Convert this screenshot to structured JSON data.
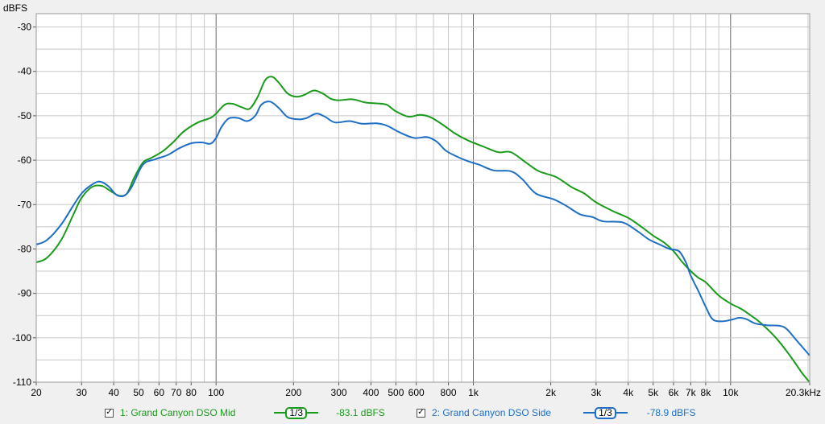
{
  "colors": {
    "series1": "#1a9a1a",
    "series2": "#1e6fc4",
    "plot_bg": "#ffffff",
    "grid_minor": "#c8c8c8",
    "grid_major": "#646464"
  },
  "chart_data": {
    "type": "line",
    "ylabel": "dBFS",
    "xscale": "log",
    "xlim": [
      20,
      20300
    ],
    "ylim": [
      -110,
      -27
    ],
    "grid": true,
    "x_ticks": [
      {
        "v": 20,
        "label": "20"
      },
      {
        "v": 30,
        "label": "30"
      },
      {
        "v": 40,
        "label": "40"
      },
      {
        "v": 50,
        "label": "50"
      },
      {
        "v": 60,
        "label": "60"
      },
      {
        "v": 70,
        "label": "70"
      },
      {
        "v": 80,
        "label": "80"
      },
      {
        "v": 100,
        "label": "100"
      },
      {
        "v": 200,
        "label": "200"
      },
      {
        "v": 300,
        "label": "300"
      },
      {
        "v": 400,
        "label": "400"
      },
      {
        "v": 500,
        "label": "500"
      },
      {
        "v": 600,
        "label": "600"
      },
      {
        "v": 800,
        "label": "800"
      },
      {
        "v": 1000,
        "label": "1k"
      },
      {
        "v": 2000,
        "label": "2k"
      },
      {
        "v": 3000,
        "label": "3k"
      },
      {
        "v": 4000,
        "label": "4k"
      },
      {
        "v": 5000,
        "label": "5k"
      },
      {
        "v": 6000,
        "label": "6k"
      },
      {
        "v": 7000,
        "label": "7k"
      },
      {
        "v": 8000,
        "label": "8k"
      },
      {
        "v": 10000,
        "label": "10k"
      },
      {
        "v": 20300,
        "label": "20.3kHz"
      }
    ],
    "y_ticks": [
      -30,
      -40,
      -50,
      -60,
      -70,
      -80,
      -90,
      -100,
      -110
    ],
    "series": [
      {
        "name": "1: Grand Canyon DSO Mid",
        "points": [
          [
            20,
            -83
          ],
          [
            22,
            -82
          ],
          [
            25,
            -78
          ],
          [
            28,
            -72
          ],
          [
            30,
            -68.5
          ],
          [
            33,
            -66
          ],
          [
            36,
            -65.8
          ],
          [
            39,
            -67
          ],
          [
            42,
            -68
          ],
          [
            45,
            -67.5
          ],
          [
            48,
            -64
          ],
          [
            52,
            -60.5
          ],
          [
            56,
            -59.5
          ],
          [
            62,
            -58
          ],
          [
            68,
            -56
          ],
          [
            75,
            -53.5
          ],
          [
            85,
            -51.5
          ],
          [
            95,
            -50.5
          ],
          [
            100,
            -49.5
          ],
          [
            108,
            -47.5
          ],
          [
            116,
            -47.3
          ],
          [
            125,
            -48
          ],
          [
            135,
            -48.4
          ],
          [
            145,
            -45.8
          ],
          [
            155,
            -42
          ],
          [
            165,
            -41.2
          ],
          [
            175,
            -42.5
          ],
          [
            190,
            -45
          ],
          [
            205,
            -45.7
          ],
          [
            220,
            -45.3
          ],
          [
            240,
            -44.3
          ],
          [
            260,
            -45
          ],
          [
            280,
            -46.2
          ],
          [
            300,
            -46.5
          ],
          [
            340,
            -46.3
          ],
          [
            380,
            -47
          ],
          [
            420,
            -47.2
          ],
          [
            460,
            -47.5
          ],
          [
            500,
            -49
          ],
          [
            560,
            -50.2
          ],
          [
            620,
            -49.8
          ],
          [
            680,
            -50.3
          ],
          [
            760,
            -52
          ],
          [
            850,
            -54
          ],
          [
            950,
            -55.5
          ],
          [
            1100,
            -57
          ],
          [
            1250,
            -58.2
          ],
          [
            1400,
            -58.2
          ],
          [
            1600,
            -60.5
          ],
          [
            1800,
            -62.5
          ],
          [
            2100,
            -63.8
          ],
          [
            2400,
            -66
          ],
          [
            2700,
            -67.5
          ],
          [
            3000,
            -69.5
          ],
          [
            3500,
            -71.5
          ],
          [
            4000,
            -73
          ],
          [
            4500,
            -75
          ],
          [
            5000,
            -77
          ],
          [
            5500,
            -78.5
          ],
          [
            6000,
            -80.5
          ],
          [
            6500,
            -83
          ],
          [
            7000,
            -85
          ],
          [
            7500,
            -86.5
          ],
          [
            8000,
            -87.5
          ],
          [
            9000,
            -90.5
          ],
          [
            10000,
            -92.3
          ],
          [
            11000,
            -93.5
          ],
          [
            12000,
            -95
          ],
          [
            13000,
            -96.5
          ],
          [
            15000,
            -100
          ],
          [
            17000,
            -104
          ],
          [
            19000,
            -108
          ],
          [
            20300,
            -110
          ]
        ]
      },
      {
        "name": "2: Grand Canyon DSO Side",
        "points": [
          [
            20,
            -79
          ],
          [
            22,
            -78
          ],
          [
            25,
            -74.5
          ],
          [
            28,
            -70
          ],
          [
            30,
            -67.5
          ],
          [
            32,
            -66
          ],
          [
            35,
            -64.8
          ],
          [
            38,
            -65.8
          ],
          [
            41,
            -67.8
          ],
          [
            44,
            -68
          ],
          [
            47,
            -66
          ],
          [
            52,
            -61
          ],
          [
            58,
            -59.8
          ],
          [
            65,
            -58.8
          ],
          [
            72,
            -57.3
          ],
          [
            80,
            -56.2
          ],
          [
            88,
            -56
          ],
          [
            95,
            -56.3
          ],
          [
            100,
            -55
          ],
          [
            105,
            -52.5
          ],
          [
            112,
            -50.6
          ],
          [
            122,
            -50.5
          ],
          [
            132,
            -51.2
          ],
          [
            142,
            -50
          ],
          [
            150,
            -47.5
          ],
          [
            162,
            -46.8
          ],
          [
            175,
            -48.2
          ],
          [
            190,
            -50.3
          ],
          [
            210,
            -50.8
          ],
          [
            225,
            -50.5
          ],
          [
            245,
            -49.5
          ],
          [
            265,
            -50.2
          ],
          [
            290,
            -51.5
          ],
          [
            330,
            -51.2
          ],
          [
            370,
            -51.8
          ],
          [
            420,
            -51.7
          ],
          [
            460,
            -52.2
          ],
          [
            520,
            -53.8
          ],
          [
            590,
            -55
          ],
          [
            660,
            -54.8
          ],
          [
            720,
            -55.8
          ],
          [
            780,
            -57.8
          ],
          [
            850,
            -59
          ],
          [
            950,
            -60.2
          ],
          [
            1050,
            -61
          ],
          [
            1200,
            -62.3
          ],
          [
            1400,
            -62.5
          ],
          [
            1550,
            -64.3
          ],
          [
            1750,
            -67.5
          ],
          [
            2050,
            -68.8
          ],
          [
            2300,
            -70.3
          ],
          [
            2600,
            -72.2
          ],
          [
            2900,
            -72.8
          ],
          [
            3200,
            -73.8
          ],
          [
            3800,
            -74
          ],
          [
            4300,
            -75.8
          ],
          [
            4800,
            -77.8
          ],
          [
            5300,
            -79
          ],
          [
            5800,
            -80
          ],
          [
            6300,
            -80.5
          ],
          [
            6700,
            -83
          ],
          [
            7000,
            -86
          ],
          [
            7500,
            -89.5
          ],
          [
            8000,
            -93
          ],
          [
            8500,
            -95.8
          ],
          [
            9200,
            -96.3
          ],
          [
            10000,
            -96
          ],
          [
            10800,
            -95.5
          ],
          [
            11500,
            -95.8
          ],
          [
            12500,
            -96.8
          ],
          [
            14000,
            -97.2
          ],
          [
            15500,
            -97.3
          ],
          [
            16500,
            -98
          ],
          [
            18000,
            -100.5
          ],
          [
            20300,
            -104
          ]
        ]
      }
    ]
  },
  "legend": [
    {
      "checkbox": "✓",
      "label": "1: Grand Canyon DSO Mid",
      "smoothing": "1/3",
      "reading": "-83.1 dBFS",
      "color": "#1a9a1a"
    },
    {
      "checkbox": "✓",
      "label": "2: Grand Canyon DSO Side",
      "smoothing": "1/3",
      "reading": "-78.9 dBFS",
      "color": "#1e6fc4"
    }
  ]
}
